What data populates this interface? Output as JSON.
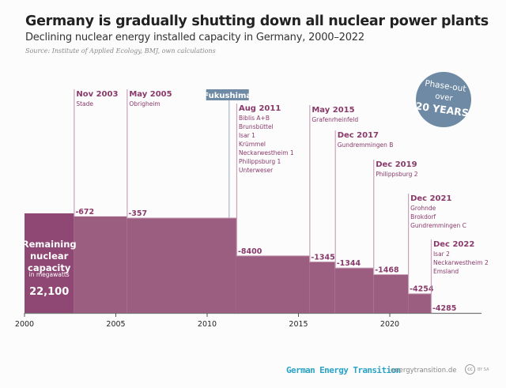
{
  "title": "Germany is gradually shutting down all nuclear power plants",
  "subtitle": "Declining nuclear energy installed capacity in Germany, 2000–2022",
  "source": "Source: Institute of Applied Ecology, BMJ, own calculations",
  "badge": {
    "line1": "Phase-out",
    "line2": "over",
    "line3": "20 YEARS",
    "color": "#6f8aa4"
  },
  "footer": {
    "brand": "German Energy Transition",
    "url": "energytransition.de",
    "cc": "cc",
    "license": "BY SA"
  },
  "colors": {
    "initial_bar": "#8f4874",
    "bar": "#9c5e80",
    "label": "#8a3a6a",
    "event_line": "#c9a3ba",
    "fukushima": "#6f8aa4"
  },
  "chart_data": {
    "type": "step-area",
    "xlim": [
      2000,
      2025
    ],
    "x_ticks": [
      "2000",
      "2005",
      "2010",
      "2015",
      "2020"
    ],
    "initial": {
      "label": [
        "Remaining",
        "nuclear",
        "capacity"
      ],
      "unit": "in megawatts",
      "value_label": "22,100",
      "value": 22100
    },
    "events": [
      {
        "date": "Nov 2003",
        "x": 2002.7,
        "plants": [
          "Stade"
        ],
        "delta_label": "-672",
        "delta": -672
      },
      {
        "date": "May 2005",
        "x": 2005.6,
        "plants": [
          "Obrigheim"
        ],
        "delta_label": "-357",
        "delta": -357
      },
      {
        "date": "Aug 2011",
        "x": 2011.6,
        "plants": [
          "Biblis A+B",
          "Brunsbüttel",
          "Isar 1",
          "Krümmel",
          "Neckarwestheim 1",
          "Philippsburg 1",
          "Unterweser"
        ],
        "delta_label": "-8400",
        "delta": -8400
      },
      {
        "date": "May 2015",
        "x": 2015.6,
        "plants": [
          "Grafenrheinfeld"
        ],
        "delta_label": "-1345",
        "delta": -1345
      },
      {
        "date": "Dec 2017",
        "x": 2017.0,
        "plants": [
          "Gundremmingen B"
        ],
        "delta_label": "-1344",
        "delta": -1344
      },
      {
        "date": "Dec 2019",
        "x": 2019.1,
        "plants": [
          "Philippsburg 2"
        ],
        "delta_label": "-1468",
        "delta": -1468
      },
      {
        "date": "Dec 2021",
        "x": 2021.0,
        "plants": [
          "Grohnde",
          "Brokdorf",
          "Gundremmingen C"
        ],
        "delta_label": "-4254",
        "delta": -4254
      },
      {
        "date": "Dec 2022",
        "x": 2022.25,
        "plants": [
          "Isar 2",
          "Neckarwestheim 2",
          "Emsland"
        ],
        "delta_label": "-4285",
        "delta": -4285
      }
    ],
    "annotation": {
      "label": "Fukushima",
      "x": 2011.2
    }
  }
}
